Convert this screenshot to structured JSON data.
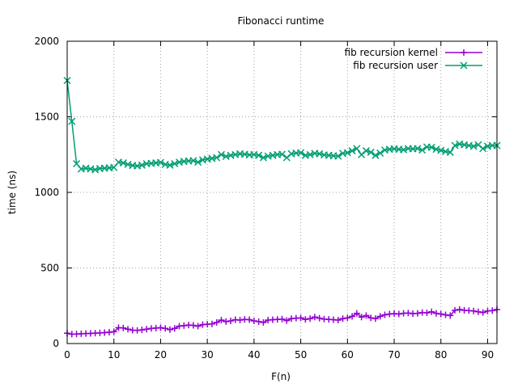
{
  "chart_data": {
    "type": "line",
    "title": "Fibonacci runtime",
    "xlabel": "F(n)",
    "ylabel": "time (ns)",
    "xlim": [
      0,
      92
    ],
    "ylim": [
      0,
      2000
    ],
    "xticks": [
      0,
      10,
      20,
      30,
      40,
      50,
      60,
      70,
      80,
      90
    ],
    "yticks": [
      0,
      500,
      1000,
      1500,
      2000
    ],
    "grid": true,
    "legend_position": "top-right",
    "x": [
      0,
      1,
      2,
      3,
      4,
      5,
      6,
      7,
      8,
      9,
      10,
      11,
      12,
      13,
      14,
      15,
      16,
      17,
      18,
      19,
      20,
      21,
      22,
      23,
      24,
      25,
      26,
      27,
      28,
      29,
      30,
      31,
      32,
      33,
      34,
      35,
      36,
      37,
      38,
      39,
      40,
      41,
      42,
      43,
      44,
      45,
      46,
      47,
      48,
      49,
      50,
      51,
      52,
      53,
      54,
      55,
      56,
      57,
      58,
      59,
      60,
      61,
      62,
      63,
      64,
      65,
      66,
      67,
      68,
      69,
      70,
      71,
      72,
      73,
      74,
      75,
      76,
      77,
      78,
      79,
      80,
      81,
      82,
      83,
      84,
      85,
      86,
      87,
      88,
      89,
      90,
      91,
      92
    ],
    "series": [
      {
        "name": "fib recursion kernel",
        "color": "#9400d3",
        "marker": "plus",
        "values": [
          68,
          62,
          63,
          65,
          66,
          67,
          69,
          70,
          72,
          75,
          78,
          105,
          103,
          95,
          88,
          87,
          90,
          95,
          100,
          102,
          105,
          100,
          92,
          100,
          115,
          118,
          122,
          120,
          115,
          125,
          128,
          130,
          140,
          155,
          145,
          150,
          158,
          155,
          160,
          158,
          150,
          145,
          140,
          155,
          158,
          160,
          162,
          152,
          165,
          168,
          170,
          160,
          165,
          175,
          168,
          162,
          160,
          158,
          155,
          165,
          170,
          180,
          200,
          175,
          185,
          170,
          165,
          180,
          190,
          195,
          198,
          195,
          200,
          202,
          198,
          200,
          205,
          203,
          210,
          200,
          195,
          190,
          185,
          220,
          225,
          220,
          218,
          215,
          210,
          205,
          215,
          218,
          225
        ]
      },
      {
        "name": "fib recursion user",
        "color": "#009e73",
        "marker": "x",
        "values": [
          1740,
          1470,
          1190,
          1155,
          1160,
          1155,
          1150,
          1158,
          1160,
          1162,
          1165,
          1200,
          1195,
          1185,
          1178,
          1175,
          1180,
          1190,
          1192,
          1195,
          1198,
          1185,
          1180,
          1190,
          1200,
          1205,
          1208,
          1210,
          1200,
          1215,
          1220,
          1225,
          1230,
          1250,
          1238,
          1245,
          1250,
          1255,
          1252,
          1248,
          1250,
          1245,
          1230,
          1240,
          1245,
          1250,
          1252,
          1230,
          1255,
          1260,
          1262,
          1245,
          1250,
          1258,
          1255,
          1248,
          1245,
          1242,
          1240,
          1258,
          1262,
          1275,
          1290,
          1250,
          1275,
          1265,
          1245,
          1260,
          1280,
          1285,
          1288,
          1285,
          1282,
          1290,
          1288,
          1290,
          1280,
          1300,
          1298,
          1285,
          1278,
          1270,
          1265,
          1310,
          1320,
          1315,
          1310,
          1305,
          1315,
          1290,
          1305,
          1310,
          1310
        ]
      }
    ]
  }
}
